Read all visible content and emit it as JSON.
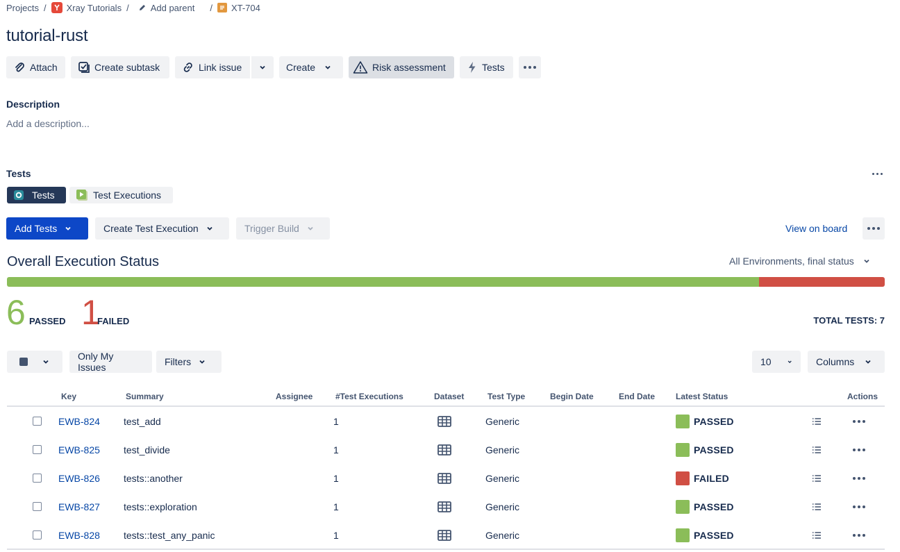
{
  "breadcrumb": {
    "projects": "Projects",
    "project": "Xray Tutorials",
    "add_parent": "Add parent",
    "issue_key": "XT-704"
  },
  "issue": {
    "title": "tutorial-rust"
  },
  "toolbar": {
    "attach": "Attach",
    "create_subtask": "Create subtask",
    "link_issue": "Link issue",
    "create": "Create",
    "risk_assessment": "Risk assessment",
    "tests": "Tests"
  },
  "description": {
    "label": "Description",
    "placeholder": "Add a description..."
  },
  "tests_panel": {
    "label": "Tests",
    "tabs": [
      {
        "label": "Tests",
        "active": true
      },
      {
        "label": "Test Executions",
        "active": false
      }
    ],
    "actions": {
      "add_tests": "Add Tests",
      "create_test_execution": "Create Test Execution",
      "trigger_build": "Trigger Build",
      "view_on_board": "View on board"
    }
  },
  "execution_status": {
    "title": "Overall Execution Status",
    "environment_filter": "All Environments, final status",
    "passed_count": "6",
    "passed_label": "PASSED",
    "failed_count": "1",
    "failed_label": "FAILED",
    "total_label": "TOTAL TESTS: 7",
    "passed_fraction": 0.857,
    "colors": {
      "passed": "#8bbd59",
      "failed": "#d04f44"
    }
  },
  "filters": {
    "only_my_issues": "Only My Issues",
    "filters": "Filters",
    "page_size": "10",
    "columns": "Columns"
  },
  "table": {
    "headers": {
      "key": "Key",
      "summary": "Summary",
      "assignee": "Assignee",
      "test_executions": "#Test Executions",
      "dataset": "Dataset",
      "test_type": "Test Type",
      "begin_date": "Begin Date",
      "end_date": "End Date",
      "latest_status": "Latest Status",
      "actions": "Actions"
    },
    "rows": [
      {
        "key": "EWB-824",
        "summary": "test_add",
        "executions": "1",
        "test_type": "Generic",
        "status": "PASSED",
        "status_color": "#8bbd59"
      },
      {
        "key": "EWB-825",
        "summary": "test_divide",
        "executions": "1",
        "test_type": "Generic",
        "status": "PASSED",
        "status_color": "#8bbd59"
      },
      {
        "key": "EWB-826",
        "summary": "tests::another",
        "executions": "1",
        "test_type": "Generic",
        "status": "FAILED",
        "status_color": "#d04f44"
      },
      {
        "key": "EWB-827",
        "summary": "tests::exploration",
        "executions": "1",
        "test_type": "Generic",
        "status": "PASSED",
        "status_color": "#8bbd59"
      },
      {
        "key": "EWB-828",
        "summary": "tests::test_any_panic",
        "executions": "1",
        "test_type": "Generic",
        "status": "PASSED",
        "status_color": "#8bbd59"
      }
    ]
  }
}
